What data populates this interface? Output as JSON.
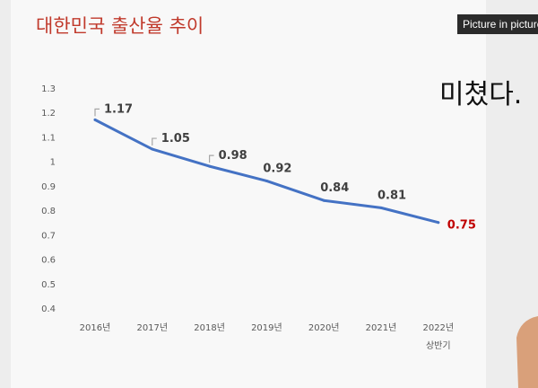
{
  "video_overlay": {
    "tooltip": "Picture in picture",
    "caption": "미쳤다."
  },
  "chart_data": {
    "type": "line",
    "title": "대한민국 출산율 추이",
    "xlabel": "",
    "ylabel": "",
    "categories": [
      "2016년",
      "2017년",
      "2018년",
      "2019년",
      "2020년",
      "2021년",
      "2022년\n상반기"
    ],
    "series": [
      {
        "name": "",
        "values": [
          1.17,
          1.05,
          0.98,
          0.92,
          0.84,
          0.81,
          0.75
        ]
      }
    ],
    "data_labels": [
      "1.17",
      "1.05",
      "0.98",
      "0.92",
      "0.84",
      "0.81",
      "0.75"
    ],
    "y_ticks": [
      "1.3",
      "1.2",
      "1.1",
      "1",
      "0.9",
      "0.8",
      "0.7",
      "0.6",
      "0.5",
      "0.4"
    ],
    "ylim": [
      0.4,
      1.3
    ],
    "grid": false,
    "legend": "none",
    "colors": {
      "line": "#4472c4",
      "title": "#c0392b",
      "highlight_label": "#c00000",
      "label": "#404040",
      "axis_text": "#595959",
      "callout": "#a6a6a6"
    }
  }
}
